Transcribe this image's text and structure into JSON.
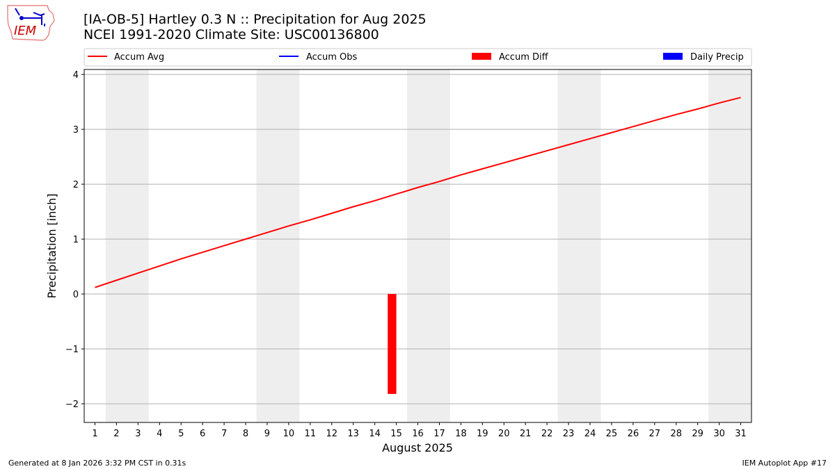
{
  "header": {
    "title": "[IA-OB-5] Hartley 0.3 N :: Precipitation for Aug 2025",
    "subtitle": "NCEI 1991-2020 Climate Site: USC00136800"
  },
  "logo": {
    "text": "IEM"
  },
  "footer": {
    "left": "Generated at 8 Jan 2026 3:32 PM CST in 0.31s",
    "right": "IEM Autoplot App #17"
  },
  "colors": {
    "avg": "#ff0000",
    "obs": "#0000ff",
    "diff": "#ff0000",
    "daily": "#0000ff",
    "weekend": "#eeeeee",
    "grid": "#b0b0b0"
  },
  "chart_data": {
    "type": "line",
    "xlabel": "August 2025",
    "ylabel": "Precipitation [inch]",
    "xlim": [
      0.5,
      31.5
    ],
    "ylim": [
      -2.34,
      4.09
    ],
    "xticks": [
      1,
      2,
      3,
      4,
      5,
      6,
      7,
      8,
      9,
      10,
      11,
      12,
      13,
      14,
      15,
      16,
      17,
      18,
      19,
      20,
      21,
      22,
      23,
      24,
      25,
      26,
      27,
      28,
      29,
      30,
      31
    ],
    "yticks": [
      -2,
      -1,
      0,
      1,
      2,
      3,
      4
    ],
    "ytick_labels": [
      "−2",
      "−1",
      "0",
      "1",
      "2",
      "3",
      "4"
    ],
    "grid": true,
    "legend": {
      "placement": "top",
      "entries": [
        "Accum Avg",
        "Accum Obs",
        "Accum Diff",
        "Daily Precip"
      ]
    },
    "weekends": [
      [
        1.5,
        3.5
      ],
      [
        8.5,
        10.5
      ],
      [
        15.5,
        17.5
      ],
      [
        22.5,
        24.5
      ],
      [
        29.5,
        31.5
      ]
    ],
    "series": [
      {
        "name": "Accum Avg",
        "type": "line",
        "x": [
          1,
          2,
          3,
          4,
          5,
          6,
          7,
          8,
          9,
          10,
          11,
          12,
          13,
          14,
          15,
          16,
          17,
          18,
          19,
          20,
          21,
          22,
          23,
          24,
          25,
          26,
          27,
          28,
          29,
          30,
          31
        ],
        "values": [
          0.12,
          0.25,
          0.38,
          0.51,
          0.64,
          0.76,
          0.88,
          1.0,
          1.12,
          1.24,
          1.35,
          1.47,
          1.59,
          1.7,
          1.82,
          1.94,
          2.05,
          2.17,
          2.28,
          2.39,
          2.5,
          2.61,
          2.72,
          2.83,
          2.94,
          3.05,
          3.16,
          3.27,
          3.37,
          3.48,
          3.58
        ]
      },
      {
        "name": "Accum Obs",
        "type": "line",
        "x": [],
        "values": []
      },
      {
        "name": "Accum Diff",
        "type": "bar",
        "x": [
          15
        ],
        "values": [
          -1.82
        ]
      },
      {
        "name": "Daily Precip",
        "type": "bar",
        "x": [],
        "values": []
      }
    ]
  }
}
